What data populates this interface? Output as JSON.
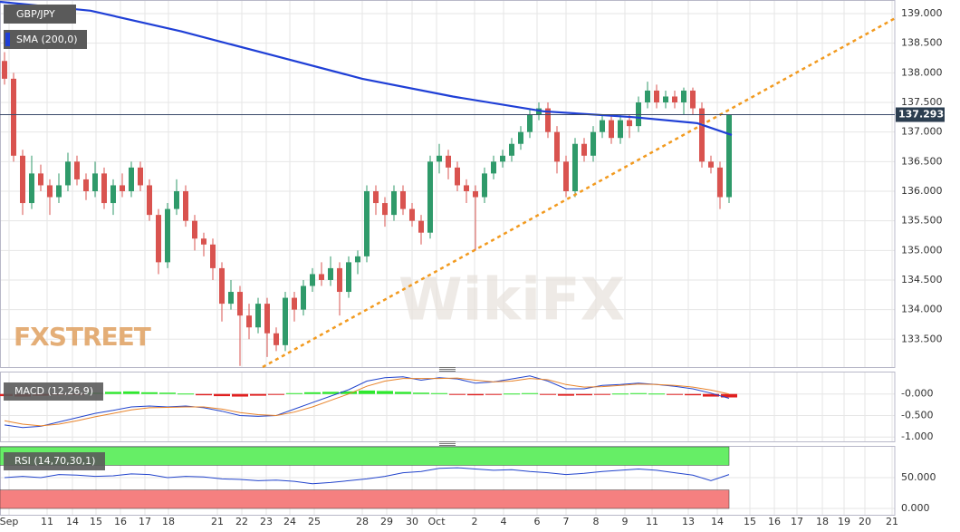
{
  "chart_data": [
    {
      "type": "candlestick",
      "title": "GBP/JPY",
      "open": [
        138.2,
        137.9,
        136.6,
        135.8,
        136.3,
        136.1,
        135.9,
        136.1,
        136.5,
        136.2,
        136.0,
        136.3,
        135.8,
        136.1,
        136.0,
        136.4,
        136.1,
        135.6,
        134.8,
        135.7,
        136.0,
        135.5,
        135.2,
        135.1,
        134.7,
        134.1,
        134.3,
        133.9,
        133.7,
        134.1,
        133.6,
        133.4,
        134.2,
        134.0,
        134.4,
        134.6,
        134.5,
        134.7,
        134.3,
        134.8,
        134.9,
        136.0,
        135.8,
        135.6,
        136.0,
        135.7,
        135.5,
        135.3,
        136.5,
        136.6,
        136.4,
        136.1,
        136.0,
        135.9,
        136.3,
        136.5,
        136.6,
        136.8,
        137.0,
        137.3,
        137.4,
        137.0,
        136.5,
        136.0,
        136.8,
        136.6,
        137.0,
        137.2,
        136.9,
        137.2,
        137.1,
        137.5,
        137.7,
        137.5,
        137.6,
        137.5,
        137.7,
        137.4,
        136.5,
        136.4,
        135.9
      ],
      "high": [
        138.35,
        138.0,
        136.7,
        136.6,
        136.45,
        136.2,
        136.3,
        136.65,
        136.6,
        136.3,
        136.5,
        136.4,
        136.2,
        136.3,
        136.5,
        136.5,
        136.2,
        135.7,
        135.8,
        136.2,
        136.1,
        135.6,
        135.3,
        135.2,
        134.8,
        134.5,
        134.4,
        134.1,
        134.2,
        134.2,
        133.7,
        134.3,
        134.3,
        134.5,
        134.7,
        134.8,
        134.9,
        134.8,
        134.9,
        135.0,
        136.1,
        136.1,
        135.9,
        136.1,
        136.1,
        135.8,
        135.6,
        136.6,
        136.8,
        136.7,
        136.5,
        136.2,
        136.1,
        136.4,
        136.6,
        136.7,
        136.9,
        137.1,
        137.4,
        137.5,
        137.5,
        137.1,
        136.6,
        136.9,
        136.9,
        137.1,
        137.3,
        137.3,
        137.3,
        137.3,
        137.6,
        137.85,
        137.8,
        137.7,
        137.7,
        137.75,
        137.75,
        137.5,
        136.6,
        136.5,
        137.3
      ],
      "low": [
        137.8,
        136.5,
        135.6,
        135.7,
        136.0,
        135.6,
        135.8,
        136.0,
        136.1,
        135.85,
        135.9,
        135.7,
        135.6,
        135.9,
        135.9,
        136.0,
        135.5,
        134.6,
        134.7,
        135.6,
        135.4,
        135.0,
        134.9,
        134.5,
        133.8,
        134.0,
        133.05,
        133.5,
        133.6,
        133.2,
        133.3,
        133.3,
        133.8,
        133.9,
        134.3,
        134.4,
        134.4,
        133.9,
        134.2,
        134.6,
        134.8,
        135.6,
        135.4,
        135.5,
        135.6,
        135.4,
        135.1,
        135.2,
        136.3,
        136.2,
        136.0,
        135.8,
        135.0,
        135.8,
        136.2,
        136.4,
        136.5,
        136.7,
        136.9,
        137.2,
        136.9,
        136.3,
        135.9,
        135.9,
        136.5,
        136.5,
        136.9,
        136.8,
        136.8,
        136.9,
        137.0,
        137.4,
        137.4,
        137.4,
        137.4,
        137.3,
        137.3,
        136.4,
        136.3,
        135.7,
        135.8
      ],
      "close": [
        137.9,
        136.6,
        135.8,
        136.3,
        136.1,
        135.9,
        136.1,
        136.5,
        136.2,
        136.0,
        136.3,
        135.8,
        136.1,
        136.0,
        136.4,
        136.1,
        135.6,
        134.8,
        135.7,
        136.0,
        135.5,
        135.2,
        135.1,
        134.7,
        134.1,
        134.3,
        133.9,
        133.7,
        134.1,
        133.6,
        133.4,
        134.2,
        134.0,
        134.4,
        134.6,
        134.5,
        134.7,
        134.3,
        134.8,
        134.9,
        136.0,
        135.8,
        135.6,
        136.0,
        135.7,
        135.5,
        135.3,
        136.5,
        136.6,
        136.4,
        136.1,
        136.0,
        135.9,
        136.3,
        136.5,
        136.6,
        136.8,
        137.0,
        137.3,
        137.4,
        137.0,
        136.5,
        136.0,
        136.8,
        136.6,
        137.0,
        137.2,
        136.9,
        137.2,
        137.1,
        137.5,
        137.7,
        137.5,
        137.6,
        137.5,
        137.7,
        137.4,
        136.5,
        136.4,
        135.9,
        137.293
      ],
      "up_color": "#2f9a6a",
      "down_color": "#d9534f",
      "xlim": [
        -0.5,
        98.3
      ],
      "xticks": [
        {
          "value": 0.5,
          "label": "Sep"
        },
        {
          "value": 4.7,
          "label": "11"
        },
        {
          "value": 7.5,
          "label": "14"
        },
        {
          "value": 10.1,
          "label": "15"
        },
        {
          "value": 12.8,
          "label": "16"
        },
        {
          "value": 15.5,
          "label": "17"
        },
        {
          "value": 18.1,
          "label": "18"
        },
        {
          "value": 23.5,
          "label": "21"
        },
        {
          "value": 26.2,
          "label": "22"
        },
        {
          "value": 28.9,
          "label": "23"
        },
        {
          "value": 31.5,
          "label": "24"
        },
        {
          "value": 34.2,
          "label": "25"
        },
        {
          "value": 39.5,
          "label": "28"
        },
        {
          "value": 42.2,
          "label": "29"
        },
        {
          "value": 45,
          "label": "30"
        },
        {
          "value": 47.7,
          "label": "Oct"
        },
        {
          "value": 51.9,
          "label": "2"
        },
        {
          "value": 55.1,
          "label": "4"
        },
        {
          "value": 58.8,
          "label": "6"
        },
        {
          "value": 62,
          "label": "7"
        },
        {
          "value": 65.3,
          "label": "8"
        },
        {
          "value": 68.5,
          "label": "9"
        },
        {
          "value": 71.5,
          "label": "11"
        },
        {
          "value": 75.5,
          "label": "13"
        },
        {
          "value": 78.7,
          "label": "14"
        },
        {
          "value": 82.3,
          "label": "15"
        },
        {
          "value": 85,
          "label": "16"
        },
        {
          "value": 87.5,
          "label": "17"
        },
        {
          "value": 90.3,
          "label": "18"
        },
        {
          "value": 92.7,
          "label": "19"
        },
        {
          "value": 95,
          "label": "20"
        },
        {
          "value": 98,
          "label": "21"
        }
      ],
      "ylim": [
        133.03,
        139.23
      ],
      "yticks": [
        {
          "value": 133.5,
          "label": "133.500"
        },
        {
          "value": 134,
          "label": "134.000"
        },
        {
          "value": 134.5,
          "label": "134.500"
        },
        {
          "value": 135,
          "label": "135.000"
        },
        {
          "value": 135.5,
          "label": "135.500"
        },
        {
          "value": 136,
          "label": "136.000"
        },
        {
          "value": 136.5,
          "label": "136.500"
        },
        {
          "value": 137,
          "label": "137.000"
        },
        {
          "value": 137.5,
          "label": "137.500"
        },
        {
          "value": 138,
          "label": "138.000"
        },
        {
          "value": 138.5,
          "label": "138.500"
        },
        {
          "value": 139,
          "label": "139.000"
        }
      ],
      "grid": true,
      "sma": {
        "name": "SMA (200,0)",
        "color": "#1f3fd6",
        "x": [
          -0.5,
          9.5,
          19.5,
          29.5,
          39.5,
          49.5,
          59.5,
          69.5,
          76.5,
          80.3
        ],
        "values": [
          139.2,
          139.05,
          138.7,
          138.3,
          137.9,
          137.6,
          137.35,
          137.25,
          137.15,
          136.95
        ]
      },
      "trendline": {
        "color": "#f29a1f",
        "x": [
          28.5,
          98.3
        ],
        "values": [
          133.03,
          138.92
        ]
      },
      "watermarks": [
        "FXSTREET",
        "WikiFX"
      ]
    },
    {
      "type": "macd",
      "title": "MACD (12,26,9)",
      "x": [
        0,
        2,
        4,
        6,
        8,
        10,
        12,
        14,
        16,
        18,
        20,
        22,
        24,
        26,
        28,
        30,
        32,
        34,
        36,
        38,
        40,
        42,
        44,
        46,
        48,
        50,
        52,
        54,
        56,
        58,
        60,
        62,
        64,
        66,
        68,
        70,
        72,
        74,
        76,
        78,
        80
      ],
      "histogram": [
        -0.05,
        -0.06,
        -0.04,
        -0.02,
        -0.01,
        0.03,
        0.05,
        0.06,
        0.04,
        0.03,
        0.01,
        -0.03,
        -0.05,
        -0.06,
        -0.04,
        -0.02,
        0.02,
        0.04,
        0.05,
        0.06,
        0.08,
        0.07,
        0.05,
        0.03,
        0.02,
        -0.02,
        -0.03,
        -0.02,
        0.01,
        0.02,
        -0.01,
        -0.04,
        -0.03,
        -0.01,
        0.01,
        0.02,
        0.01,
        -0.01,
        -0.03,
        -0.06,
        -0.08
      ],
      "macd": [
        -0.72,
        -0.78,
        -0.75,
        -0.65,
        -0.55,
        -0.45,
        -0.38,
        -0.3,
        -0.28,
        -0.3,
        -0.28,
        -0.32,
        -0.4,
        -0.5,
        -0.52,
        -0.5,
        -0.35,
        -0.2,
        -0.05,
        0.1,
        0.3,
        0.38,
        0.4,
        0.32,
        0.38,
        0.35,
        0.25,
        0.28,
        0.35,
        0.42,
        0.3,
        0.12,
        0.12,
        0.2,
        0.22,
        0.25,
        0.22,
        0.18,
        0.12,
        0.02,
        -0.1
      ],
      "signal": [
        -0.62,
        -0.7,
        -0.74,
        -0.7,
        -0.62,
        -0.53,
        -0.45,
        -0.37,
        -0.32,
        -0.31,
        -0.3,
        -0.3,
        -0.35,
        -0.43,
        -0.48,
        -0.5,
        -0.42,
        -0.3,
        -0.15,
        0.0,
        0.18,
        0.3,
        0.36,
        0.36,
        0.36,
        0.37,
        0.32,
        0.28,
        0.3,
        0.36,
        0.33,
        0.22,
        0.16,
        0.17,
        0.2,
        0.23,
        0.22,
        0.2,
        0.16,
        0.09,
        0.0
      ],
      "macd_color": "#2244cc",
      "signal_color": "#e8832a",
      "up_color": "#2ee82e",
      "down_color": "#e02020",
      "ylim": [
        -1.1,
        0.52
      ],
      "yticks": [
        {
          "value": 0,
          "label": "-0.000"
        },
        {
          "value": -0.5,
          "label": "-0.500"
        },
        {
          "value": -1,
          "label": "-1.000"
        }
      ]
    },
    {
      "type": "rsi",
      "title": "RSI (14,70,30,1)",
      "x": [
        0,
        2,
        4,
        6,
        8,
        10,
        12,
        14,
        16,
        18,
        20,
        22,
        24,
        26,
        28,
        30,
        32,
        34,
        36,
        38,
        40,
        42,
        44,
        46,
        48,
        50,
        52,
        54,
        56,
        58,
        60,
        62,
        64,
        66,
        68,
        70,
        72,
        74,
        76,
        78,
        80
      ],
      "values": [
        50,
        52,
        50,
        55,
        54,
        52,
        53,
        56,
        55,
        50,
        52,
        51,
        48,
        47,
        45,
        46,
        44,
        40,
        42,
        45,
        48,
        52,
        58,
        60,
        65,
        66,
        64,
        62,
        63,
        60,
        58,
        55,
        57,
        60,
        62,
        64,
        62,
        58,
        54,
        45,
        55
      ],
      "color": "#2244cc",
      "bands": [
        {
          "from": 70,
          "to": 100,
          "color": "#66ee66"
        },
        {
          "from": 0,
          "to": 30,
          "color": "#f58080"
        }
      ],
      "ylim": [
        -10.3,
        101.5
      ],
      "yticks": [
        {
          "value": 50,
          "label": "50.000"
        },
        {
          "value": 0,
          "label": "0.000"
        }
      ]
    }
  ]
}
